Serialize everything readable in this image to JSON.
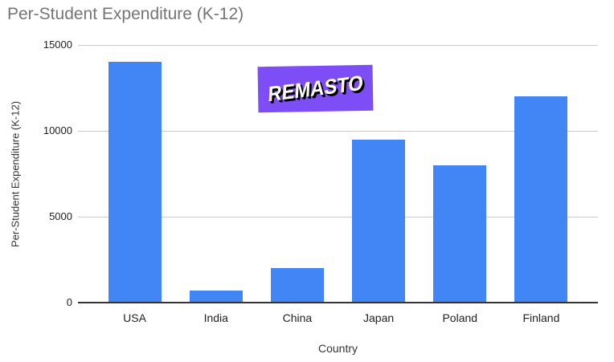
{
  "watermark": {
    "text": "REMASTO",
    "bg_color": "#7D4EF6",
    "text_color": "#ffffff",
    "shadow_color": "#000000"
  },
  "chart_data": {
    "type": "bar",
    "title": "Per-Student Expenditure (K-12)",
    "xlabel": "Country",
    "ylabel": "Per-Student Expenditure (K-12)",
    "categories": [
      "USA",
      "India",
      "China",
      "Japan",
      "Poland",
      "Finland"
    ],
    "values": [
      14000,
      700,
      2000,
      9500,
      8000,
      12000
    ],
    "ylim": [
      0,
      15000
    ],
    "yticks": [
      0,
      5000,
      10000,
      15000
    ],
    "grid": true,
    "legend": "none",
    "bar_color": "#4285F4",
    "title_color": "#757575",
    "tick_text_color": "#222222",
    "axis_title_color": "#333333",
    "gridline_color": "#cccccc",
    "baseline_color": "#333333",
    "background": "#ffffff"
  }
}
